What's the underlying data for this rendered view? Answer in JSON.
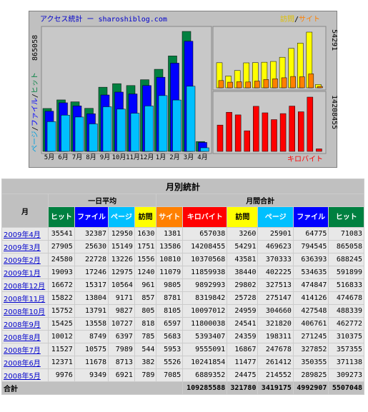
{
  "chart": {
    "title": "アクセス統計 ー sharoshiblog.com",
    "legend_visits": "訪問",
    "legend_sep": "/",
    "legend_sites": "サイト",
    "left_max": "865058",
    "left_label_pages": "ページ",
    "left_label_files": "ファイル",
    "left_label_hits": "ヒット",
    "left_sep": "/",
    "right_top_max": "54291",
    "right_bottom_max": "14208455",
    "kbytes_label": "キロバイト",
    "months": [
      "5月",
      "6月",
      "7月",
      "8月",
      "9月",
      "10月",
      "11月",
      "12月",
      "1月",
      "2月",
      "3月",
      "4月"
    ],
    "colors": {
      "hits": "#008040",
      "files": "#0000ff",
      "pages": "#00c0ff",
      "visits": "#ffff00",
      "sites": "#ff8000",
      "kbytes": "#ff0000"
    }
  },
  "table": {
    "title": "月別統計",
    "month_header": "月",
    "daily_header": "一日平均",
    "monthly_header": "月間合計",
    "columns": [
      "ヒット",
      "ファイル",
      "ページ",
      "訪問",
      "サイト",
      "キロバイト",
      "訪問",
      "ページ",
      "ファイル",
      "ヒット"
    ],
    "column_colors": [
      "#008040",
      "#0000ff",
      "#00c0ff",
      "#ffff00",
      "#ff8000",
      "#ff0000",
      "#ffff00",
      "#00c0ff",
      "#0000ff",
      "#008040"
    ],
    "rows": [
      {
        "month": "2009年4月",
        "values": [
          35541,
          32387,
          12950,
          1630,
          1381,
          657038,
          3260,
          25901,
          64775,
          71083
        ]
      },
      {
        "month": "2009年3月",
        "values": [
          27905,
          25630,
          15149,
          1751,
          13586,
          14208455,
          54291,
          469623,
          794545,
          865058
        ]
      },
      {
        "month": "2009年2月",
        "values": [
          24580,
          22728,
          13226,
          1556,
          10810,
          10370568,
          43581,
          370333,
          636393,
          688245
        ]
      },
      {
        "month": "2009年1月",
        "values": [
          19093,
          17246,
          12975,
          1240,
          11079,
          11859938,
          38440,
          402225,
          534635,
          591899
        ]
      },
      {
        "month": "2008年12月",
        "values": [
          16672,
          15317,
          10564,
          961,
          9805,
          9892993,
          29802,
          327513,
          474847,
          516833
        ]
      },
      {
        "month": "2008年11月",
        "values": [
          15822,
          13804,
          9171,
          857,
          8781,
          8319842,
          25728,
          275147,
          414126,
          474678
        ]
      },
      {
        "month": "2008年10月",
        "values": [
          15752,
          13791,
          9827,
          805,
          8105,
          10097012,
          24959,
          304660,
          427548,
          488339
        ]
      },
      {
        "month": "2008年9月",
        "values": [
          15425,
          13558,
          10727,
          818,
          6597,
          11800038,
          24541,
          321820,
          406761,
          462772
        ]
      },
      {
        "month": "2008年8月",
        "values": [
          10012,
          8749,
          6397,
          785,
          5683,
          5393407,
          24359,
          198311,
          271245,
          310375
        ]
      },
      {
        "month": "2008年7月",
        "values": [
          11527,
          10575,
          7989,
          544,
          5953,
          9555091,
          16867,
          247678,
          327852,
          357355
        ]
      },
      {
        "month": "2008年6月",
        "values": [
          12371,
          11678,
          8713,
          382,
          5526,
          10241854,
          11477,
          261412,
          350355,
          371138
        ]
      },
      {
        "month": "2008年5月",
        "values": [
          9976,
          9349,
          6921,
          789,
          7085,
          6889352,
          24475,
          214552,
          289825,
          309273
        ]
      }
    ],
    "total": {
      "label": "合計",
      "values": [
        109285588,
        321780,
        3419175,
        4992907,
        5507048
      ]
    }
  }
}
